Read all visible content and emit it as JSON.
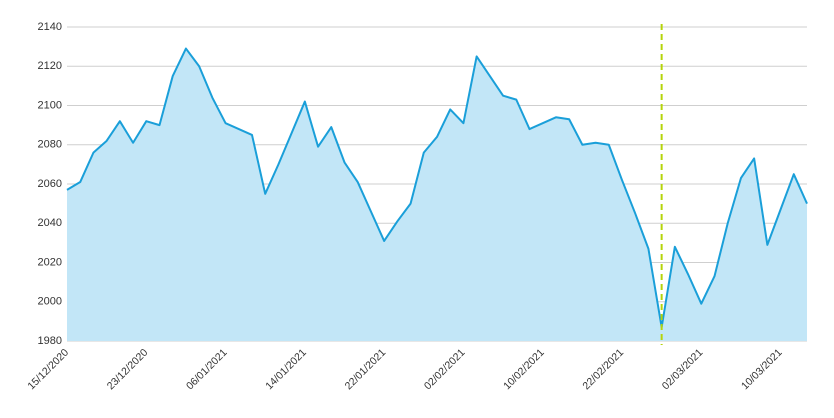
{
  "chart_data": {
    "type": "area",
    "categories": [
      "15/12/2020",
      null,
      null,
      null,
      null,
      null,
      "23/12/2020",
      null,
      null,
      null,
      null,
      null,
      "06/01/2021",
      null,
      null,
      null,
      null,
      null,
      "14/01/2021",
      null,
      null,
      null,
      null,
      null,
      "22/01/2021",
      null,
      null,
      null,
      null,
      null,
      "02/02/2021",
      null,
      null,
      null,
      null,
      null,
      "10/02/2021",
      null,
      null,
      null,
      null,
      null,
      "22/02/2021",
      null,
      null,
      null,
      null,
      null,
      "02/03/2021",
      null,
      null,
      null,
      null,
      null,
      "10/03/2021",
      null,
      null
    ],
    "values": [
      2057,
      2061,
      2076,
      2082,
      2092,
      2081,
      2092,
      2090,
      2115,
      2129,
      2120,
      2104,
      2091,
      2088,
      2085,
      2055,
      2070,
      2086,
      2102,
      2079,
      2089,
      2071,
      2061,
      2046,
      2031,
      2041,
      2050,
      2076,
      2084,
      2098,
      2091,
      2125,
      2115,
      2105,
      2103,
      2088,
      2091,
      2094,
      2093,
      2080,
      2081,
      2080,
      2062,
      2045,
      2027,
      1987,
      2028,
      2014,
      1999,
      2013,
      2040,
      2063,
      2073,
      2029,
      2047,
      2065,
      2050
    ],
    "color": "#1a9fd9",
    "fill_color": "#c2e6f7",
    "ylim": [
      1980,
      2140
    ],
    "yticks": [
      1980,
      2000,
      2020,
      2040,
      2060,
      2080,
      2100,
      2120,
      2140
    ],
    "grid": true,
    "vline_index": 45,
    "vline_color": "#b5d40a"
  }
}
